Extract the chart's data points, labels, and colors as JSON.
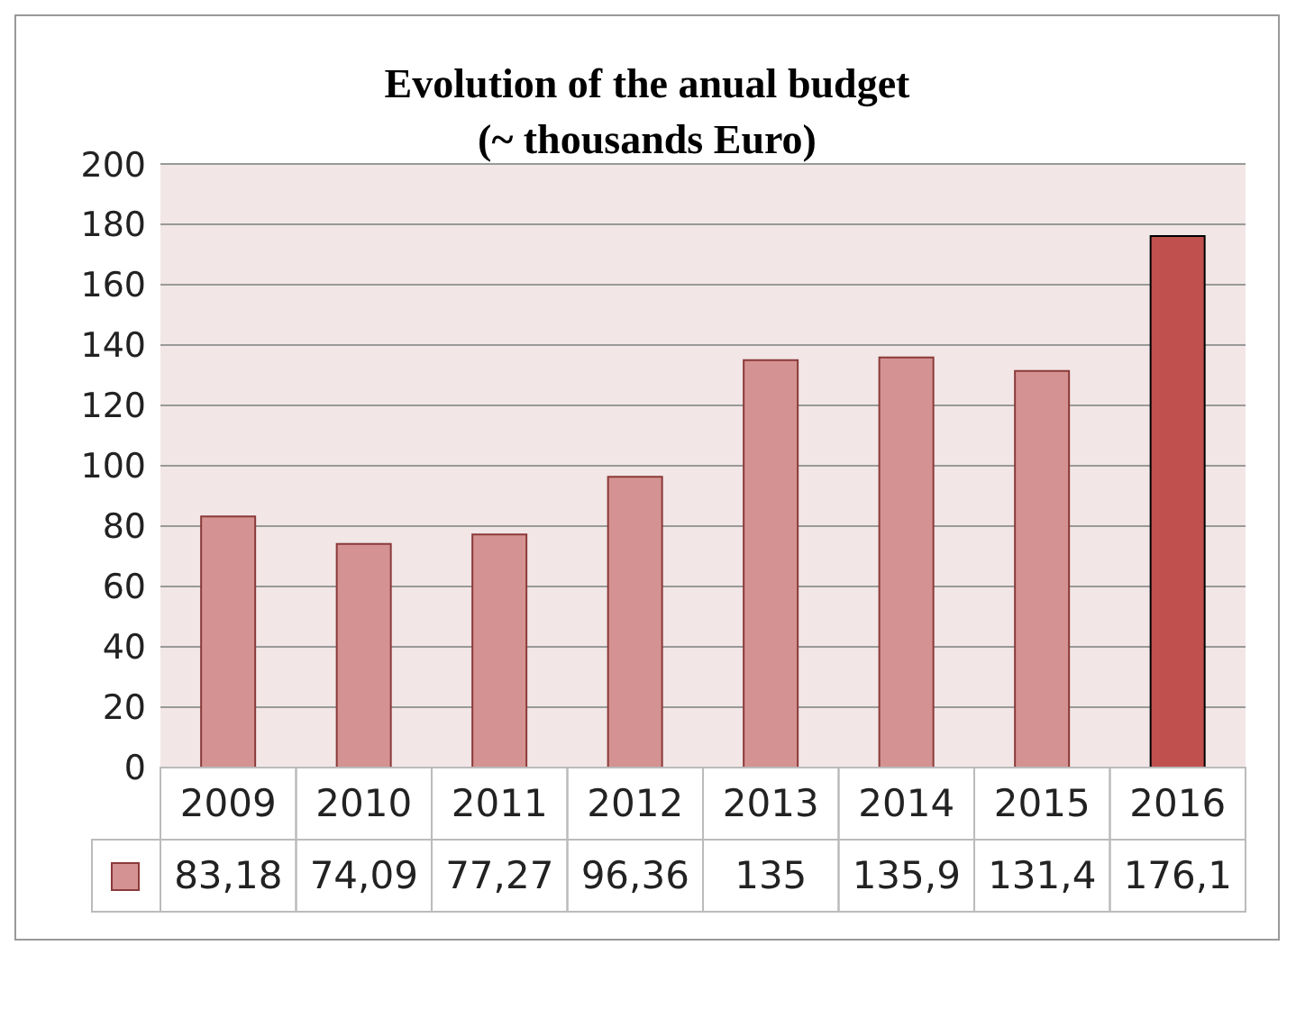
{
  "chart_data": {
    "type": "bar",
    "title": "Evolution of the anual budget",
    "subtitle": "(~ thousands Euro)",
    "categories": [
      "2009",
      "2010",
      "2011",
      "2012",
      "2013",
      "2014",
      "2015",
      "2016"
    ],
    "values": [
      83.18,
      74.09,
      77.27,
      96.36,
      135,
      135.9,
      131.4,
      176.1
    ],
    "value_labels": [
      "83,18",
      "74,09",
      "77,27",
      "96,36",
      "135",
      "135,9",
      "131,4",
      "176,1"
    ],
    "colors": [
      "#d49392",
      "#d49392",
      "#d49392",
      "#d49392",
      "#d49392",
      "#d49392",
      "#d49392",
      "#c0504d"
    ],
    "ylim": [
      0,
      200
    ],
    "yticks": [
      0,
      20,
      40,
      60,
      80,
      100,
      120,
      140,
      160,
      180,
      200
    ],
    "grid": "y"
  }
}
